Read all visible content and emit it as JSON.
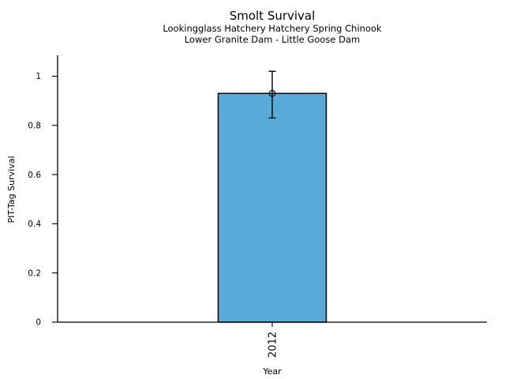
{
  "chart_data": {
    "type": "bar",
    "title": "Smolt Survival",
    "subtitle": [
      "Lookingglass Hatchery Hatchery Spring Chinook",
      "Lower Granite Dam - Little Goose Dam"
    ],
    "categories": [
      "2012"
    ],
    "series": [
      {
        "name": "PIT-Tag Survival",
        "values": [
          0.93
        ]
      }
    ],
    "error_bars": {
      "low": [
        0.83
      ],
      "high": [
        1.02
      ]
    },
    "xlabel": "Year",
    "ylabel": "PIT-Tag Survival",
    "ylim": [
      0,
      1.08
    ],
    "yticks": [
      0,
      0.2,
      0.4,
      0.6,
      0.8,
      1
    ],
    "ytick_labels": [
      "0",
      "0.2",
      "0.4",
      "0.6",
      "0.8",
      "1"
    ],
    "xtick_labels": [
      "2012"
    ],
    "xtick_rotation": 90,
    "grid": false,
    "legend": "none",
    "marker": "open-circle",
    "colors": {
      "bar_fill": "#59ABD7",
      "bar_edge": "#000000",
      "error_bar": "#000000",
      "axis": "#000000",
      "text": "#000000"
    }
  }
}
